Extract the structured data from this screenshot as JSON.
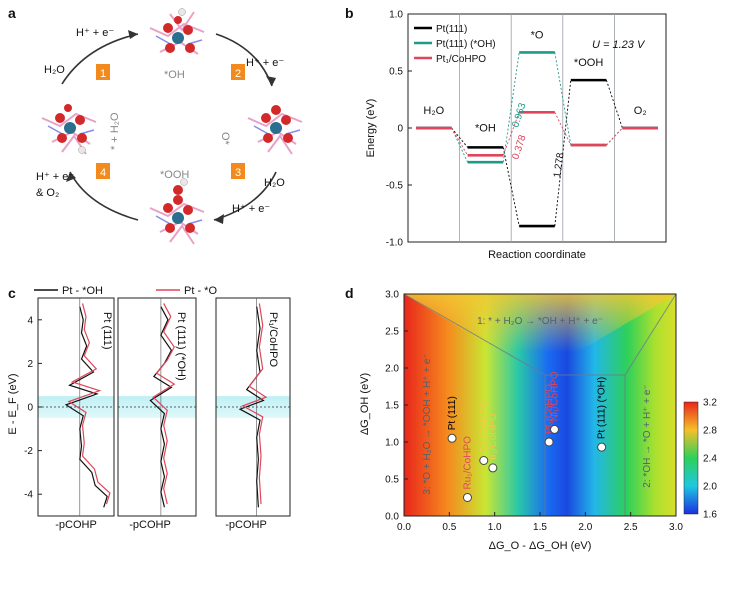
{
  "panel_labels": {
    "a": "a",
    "b": "b",
    "c": "c",
    "d": "d"
  },
  "panel_a": {
    "species": [
      "*OH",
      "O*",
      "*OOH",
      "* + H₂O"
    ],
    "steps": [
      {
        "num": "1",
        "products": "H⁺ + e⁻",
        "reactant": "H₂O"
      },
      {
        "num": "2",
        "products": "H⁺ + e⁻"
      },
      {
        "num": "3",
        "products": "H⁺ + e⁻",
        "reactant": "H₂O"
      },
      {
        "num": "4",
        "products": "H⁺ + e⁻",
        "products2": "& O₂"
      }
    ],
    "step_color": "#f28a1e"
  },
  "chart_data": [
    {
      "type": "line",
      "panel": "b",
      "xlabel": "Reaction coordinate",
      "ylabel": "Energy (eV)",
      "ylim": [
        -1.0,
        1.0
      ],
      "yticks": [
        "1.0",
        "0.5",
        "0",
        "-0.5",
        "-1.0"
      ],
      "potential_label": "U = 1.23 V",
      "states": [
        "H2O",
        "*OH",
        "*O",
        "*OOH",
        "O2"
      ],
      "state_labels": [
        "H₂O",
        "*OH",
        "*O",
        "*OOH",
        "O₂"
      ],
      "series": [
        {
          "name": "Pt(111)",
          "color": "#000000",
          "values": [
            0,
            -0.17,
            -0.86,
            0.42,
            0
          ]
        },
        {
          "name": "Pt(111) (*OH)",
          "color": "#1f9a8a",
          "values": [
            0,
            -0.3,
            0.663,
            -0.15,
            0
          ]
        },
        {
          "name": "Pt₁/CoHPO",
          "color": "#e0455a",
          "values": [
            0,
            -0.24,
            0.138,
            -0.15,
            0
          ]
        }
      ],
      "annotations": [
        {
          "text": "0.963",
          "color": "#1f9a8a"
        },
        {
          "text": "0.378",
          "color": "#e0455a"
        },
        {
          "text": "1.278",
          "color": "#000000"
        }
      ]
    },
    {
      "type": "line",
      "panel": "c",
      "ylabel": "E - E_F (eV)",
      "yticks": [
        "4",
        "2",
        "0",
        "-2",
        "-4"
      ],
      "xlabel": "-pCOHP",
      "series": [
        {
          "name": "Pt - *OH",
          "color": "#111111"
        },
        {
          "name": "Pt - *O",
          "color": "#e0455a"
        }
      ],
      "subpanels": [
        "Pt (111)",
        "Pt (111) (*OH)",
        "Pt₁/CoHPO"
      ]
    },
    {
      "type": "heatmap",
      "panel": "d",
      "xlabel": "ΔG_O - ΔG_OH (eV)",
      "ylabel": "ΔG_OH (eV)",
      "xlim": [
        0.0,
        3.0
      ],
      "ylim": [
        0.0,
        3.0
      ],
      "xticks": [
        "0.0",
        "0.5",
        "1.0",
        "1.5",
        "2.0",
        "2.5",
        "3.0"
      ],
      "yticks": [
        "3.0",
        "2.5",
        "2.0",
        "1.5",
        "1.0",
        "0.5",
        "0.0"
      ],
      "colorbar_ticks": [
        "3.2",
        "2.8",
        "2.4",
        "2.0",
        "1.6"
      ],
      "colorbar_range": [
        1.6,
        3.2
      ],
      "region_labels": [
        "1: * + H₂O → *OH + H⁺ + e⁻",
        "2: *OH → *O + H⁺ + e⁻",
        "3: *O + H₂O → *OOH + H⁺ + e⁻"
      ],
      "points": [
        {
          "label": "Pt (111)",
          "x": 0.53,
          "y": 1.05,
          "color": "#000000"
        },
        {
          "label": "Fe₁/CoHPO",
          "x": 0.88,
          "y": 0.75,
          "color": "#f2c84b"
        },
        {
          "label": "Ir₁/CoHPO",
          "x": 0.98,
          "y": 0.65,
          "color": "#f2c84b"
        },
        {
          "label": "Ru₁/CoHPO",
          "x": 0.7,
          "y": 0.25,
          "color": "#e0455a"
        },
        {
          "label": "Pt₁/CoHPO",
          "x": 1.6,
          "y": 1.0,
          "color": "#e0455a"
        },
        {
          "label": "Ni₁/CoHPO",
          "x": 1.66,
          "y": 1.17,
          "color": "#e0455a"
        },
        {
          "label": "Pt (111) (*OH)",
          "x": 2.18,
          "y": 0.93,
          "color": "#000000"
        }
      ]
    }
  ]
}
